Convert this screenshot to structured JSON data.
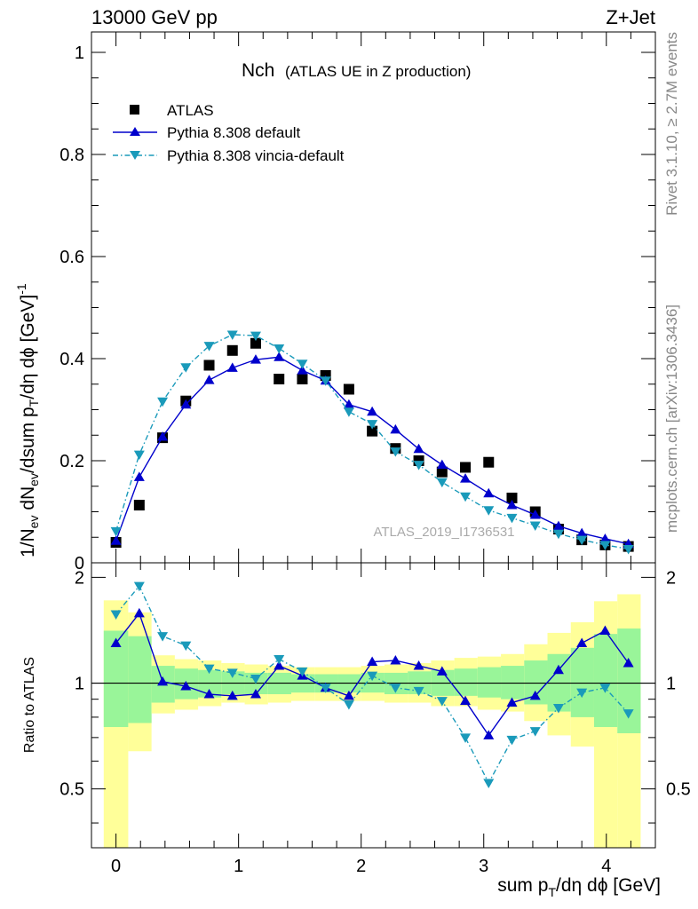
{
  "header": {
    "left": "13000 GeV pp",
    "right": "Z+Jet"
  },
  "side": {
    "rivet": "Rivet 3.1.10, ≥ 2.7M events",
    "mcplots": "mcplots.cern.ch [arXiv:1306.3436]"
  },
  "chart_data": [
    {
      "type": "scatter",
      "title": "Nch",
      "subtitle": "(ATLAS UE in Z production)",
      "watermark": "ATLAS_2019_I1736531",
      "ylabel": "1/N_ev dN_ev/dsum p_T/dη dϕ [GeV]^-1",
      "xlim": [
        -0.2,
        4.4
      ],
      "ylim": [
        0,
        1.04
      ],
      "y_ticks": [
        "0",
        "0.2",
        "0.4",
        "0.6",
        "0.8",
        "1"
      ],
      "legend_position": "top-left",
      "x": [
        0.0,
        0.19,
        0.38,
        0.57,
        0.76,
        0.95,
        1.14,
        1.33,
        1.52,
        1.71,
        1.9,
        2.09,
        2.28,
        2.47,
        2.66,
        2.85,
        3.04,
        3.23,
        3.42,
        3.61,
        3.8,
        3.99,
        4.18
      ],
      "series": [
        {
          "name": "ATLAS",
          "color": "#000000",
          "marker": "square",
          "values": [
            0.04,
            0.113,
            0.245,
            0.317,
            0.387,
            0.416,
            0.43,
            0.36,
            0.36,
            0.367,
            0.34,
            0.258,
            0.224,
            0.2,
            0.178,
            0.187,
            0.197,
            0.127,
            0.1,
            0.066,
            0.045,
            0.035,
            0.032
          ]
        },
        {
          "name": "Pythia 8.308 default",
          "color": "#0000cc",
          "marker": "triangle-up",
          "values": [
            0.043,
            0.168,
            0.247,
            0.31,
            0.358,
            0.382,
            0.398,
            0.403,
            0.377,
            0.357,
            0.31,
            0.296,
            0.261,
            0.223,
            0.192,
            0.165,
            0.136,
            0.113,
            0.094,
            0.072,
            0.058,
            0.047,
            0.037
          ]
        },
        {
          "name": "Pythia 8.308 vincia-default",
          "color": "#1a9aba",
          "marker": "triangle-down",
          "values": [
            0.062,
            0.212,
            0.316,
            0.383,
            0.425,
            0.447,
            0.445,
            0.42,
            0.39,
            0.357,
            0.296,
            0.272,
            0.218,
            0.192,
            0.158,
            0.13,
            0.103,
            0.088,
            0.073,
            0.057,
            0.045,
            0.035,
            0.027
          ]
        }
      ]
    },
    {
      "type": "line",
      "ylabel": "Ratio to ATLAS",
      "xlabel": "sum p_T/dη dϕ [GeV]",
      "xlim": [
        -0.2,
        4.4
      ],
      "ylim": [
        0.34,
        2.2
      ],
      "x_ticks": [
        "0",
        "1",
        "2",
        "3",
        "4"
      ],
      "y_ticks": [
        "0.5",
        "1",
        "2"
      ],
      "reference_line": 1,
      "band_edges": [
        -0.1,
        0.1,
        0.29,
        0.48,
        0.67,
        0.86,
        1.05,
        1.24,
        1.43,
        1.62,
        1.81,
        2.0,
        2.19,
        2.38,
        2.57,
        2.76,
        2.95,
        3.14,
        3.33,
        3.52,
        3.71,
        3.9,
        4.09,
        4.28
      ],
      "band_yellow_lo": [
        0.34,
        0.64,
        0.82,
        0.84,
        0.86,
        0.88,
        0.87,
        0.88,
        0.89,
        0.89,
        0.89,
        0.89,
        0.88,
        0.88,
        0.86,
        0.86,
        0.84,
        0.83,
        0.78,
        0.71,
        0.66,
        0.34,
        0.34
      ],
      "band_yellow_hi": [
        1.72,
        1.59,
        1.2,
        1.17,
        1.16,
        1.14,
        1.13,
        1.12,
        1.11,
        1.11,
        1.11,
        1.12,
        1.13,
        1.14,
        1.16,
        1.18,
        1.19,
        1.21,
        1.29,
        1.39,
        1.49,
        1.71,
        1.79
      ],
      "band_green_lo": [
        0.75,
        0.77,
        0.88,
        0.9,
        0.91,
        0.93,
        0.93,
        0.93,
        0.94,
        0.94,
        0.94,
        0.94,
        0.93,
        0.93,
        0.92,
        0.92,
        0.91,
        0.9,
        0.87,
        0.83,
        0.8,
        0.75,
        0.72
      ],
      "band_green_hi": [
        1.41,
        1.36,
        1.12,
        1.1,
        1.09,
        1.08,
        1.07,
        1.07,
        1.06,
        1.06,
        1.06,
        1.07,
        1.07,
        1.08,
        1.09,
        1.1,
        1.11,
        1.12,
        1.16,
        1.21,
        1.26,
        1.38,
        1.43
      ],
      "band_colors": {
        "yellow": "#ffff99",
        "green": "#99f599"
      },
      "x": [
        0.0,
        0.19,
        0.38,
        0.57,
        0.76,
        0.95,
        1.14,
        1.33,
        1.52,
        1.71,
        1.9,
        2.09,
        2.28,
        2.47,
        2.66,
        2.85,
        3.04,
        3.23,
        3.42,
        3.61,
        3.8,
        3.99,
        4.18
      ],
      "series": [
        {
          "name": "Pythia 8.308 default",
          "color": "#0000cc",
          "marker": "triangle-up",
          "values": [
            1.3,
            1.58,
            1.01,
            0.98,
            0.93,
            0.92,
            0.93,
            1.12,
            1.05,
            0.97,
            0.92,
            1.15,
            1.16,
            1.12,
            1.08,
            0.89,
            0.71,
            0.88,
            0.92,
            1.09,
            1.3,
            1.41,
            1.14
          ]
        },
        {
          "name": "Pythia 8.308 vincia-default",
          "color": "#1a9aba",
          "marker": "triangle-down",
          "values": [
            1.57,
            1.89,
            1.36,
            1.28,
            1.1,
            1.07,
            1.03,
            1.17,
            1.08,
            0.97,
            0.87,
            1.05,
            0.97,
            0.95,
            0.89,
            0.7,
            0.52,
            0.69,
            0.73,
            0.85,
            0.94,
            0.97,
            0.82
          ]
        }
      ]
    }
  ]
}
